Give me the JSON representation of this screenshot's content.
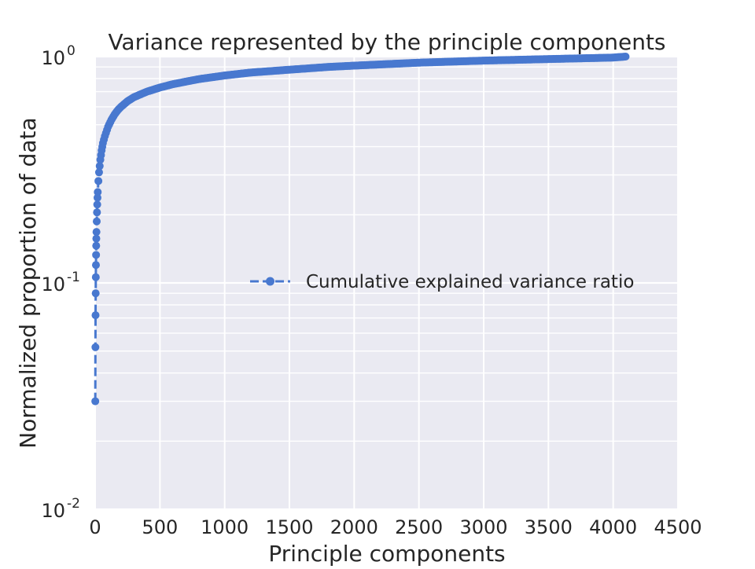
{
  "chart_data": {
    "type": "line",
    "title": "Variance represented by the principle components",
    "xlabel": "Principle components",
    "ylabel": "Normalized proportion of data",
    "xlim": [
      0,
      4500
    ],
    "ylim": [
      0.01,
      1
    ],
    "yscale": "log",
    "x_ticks": [
      0,
      500,
      1000,
      1500,
      2000,
      2500,
      3000,
      3500,
      4000,
      4500
    ],
    "x_tick_labels": [
      "0",
      "500",
      "1000",
      "1500",
      "2000",
      "2500",
      "3000",
      "3500",
      "4000",
      "4500"
    ],
    "y_ticks": [
      0.01,
      0.1,
      1
    ],
    "y_tick_labels": [
      {
        "base": "10",
        "exp": "-2"
      },
      {
        "base": "10",
        "exp": "-1"
      },
      {
        "base": "10",
        "exp": "0"
      }
    ],
    "grid": true,
    "legend_position": "center-right",
    "series": [
      {
        "name": "Cumulative explained variance ratio",
        "color": "#4878cf",
        "line_style": "dashed",
        "marker": "circle",
        "x": [
          1,
          2,
          3,
          4,
          5,
          6,
          7,
          8,
          9,
          10,
          12,
          14,
          16,
          18,
          20,
          25,
          30,
          40,
          50,
          60,
          75,
          100,
          125,
          150,
          175,
          200,
          250,
          300,
          400,
          500,
          600,
          700,
          800,
          1000,
          1200,
          1500,
          1800,
          2000,
          2500,
          3000,
          3500,
          4000,
          4096
        ],
        "y": [
          0.03,
          0.052,
          0.072,
          0.09,
          0.106,
          0.12,
          0.133,
          0.146,
          0.157,
          0.168,
          0.187,
          0.205,
          0.222,
          0.238,
          0.252,
          0.282,
          0.308,
          0.35,
          0.385,
          0.415,
          0.445,
          0.49,
          0.525,
          0.555,
          0.58,
          0.6,
          0.635,
          0.662,
          0.7,
          0.73,
          0.755,
          0.775,
          0.795,
          0.825,
          0.85,
          0.875,
          0.9,
          0.912,
          0.94,
          0.96,
          0.975,
          0.99,
          1.0
        ]
      }
    ]
  }
}
